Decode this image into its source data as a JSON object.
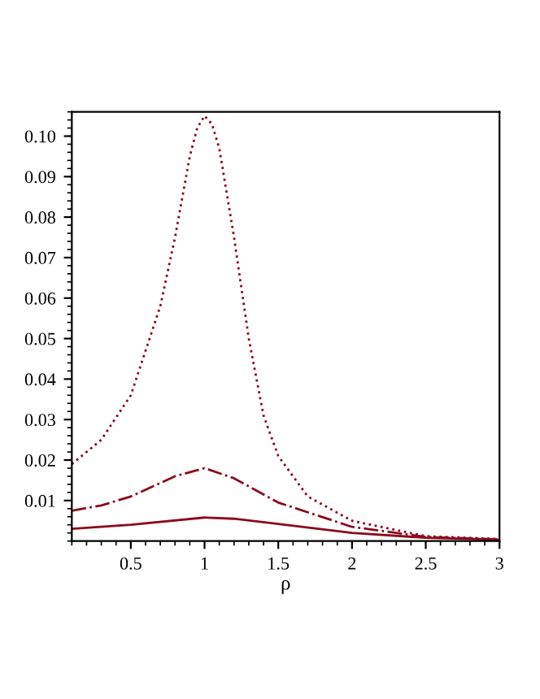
{
  "chart_data": {
    "type": "line",
    "xlabel": "ρ",
    "series": [
      {
        "color": "#8b0a1e",
        "line_style": "dotted",
        "x": [
          0.1,
          0.3,
          0.5,
          0.7,
          0.8,
          0.9,
          0.95,
          1.0,
          1.05,
          1.1,
          1.2,
          1.3,
          1.4,
          1.5,
          1.7,
          2.0,
          2.5,
          3.0
        ],
        "values": [
          0.019,
          0.025,
          0.036,
          0.058,
          0.075,
          0.095,
          0.102,
          0.105,
          0.103,
          0.097,
          0.075,
          0.05,
          0.031,
          0.021,
          0.011,
          0.005,
          0.0012,
          0.0005
        ]
      },
      {
        "color": "#8b0a1e",
        "line_style": "dashdot",
        "x": [
          0.1,
          0.3,
          0.5,
          0.8,
          1.0,
          1.2,
          1.5,
          2.0,
          2.5,
          3.0
        ],
        "values": [
          0.0075,
          0.0088,
          0.011,
          0.016,
          0.018,
          0.0155,
          0.0095,
          0.0035,
          0.001,
          0.0004
        ]
      },
      {
        "color": "#8b0a1e",
        "line_style": "solid",
        "x": [
          0.1,
          0.5,
          1.0,
          1.2,
          1.5,
          2.0,
          2.5,
          3.0
        ],
        "values": [
          0.003,
          0.004,
          0.0058,
          0.0055,
          0.0042,
          0.002,
          0.0008,
          0.0003
        ]
      }
    ],
    "xlim": [
      0.1,
      3
    ],
    "ylim": [
      0,
      0.106
    ],
    "xticks": [
      0.5,
      1,
      1.5,
      2,
      2.5,
      3
    ],
    "yticks": [
      0.01,
      0.02,
      0.03,
      0.04,
      0.05,
      0.06,
      0.07,
      0.08,
      0.09,
      {
        "value": 0.1,
        "label": "0.10"
      }
    ],
    "grid": false
  }
}
